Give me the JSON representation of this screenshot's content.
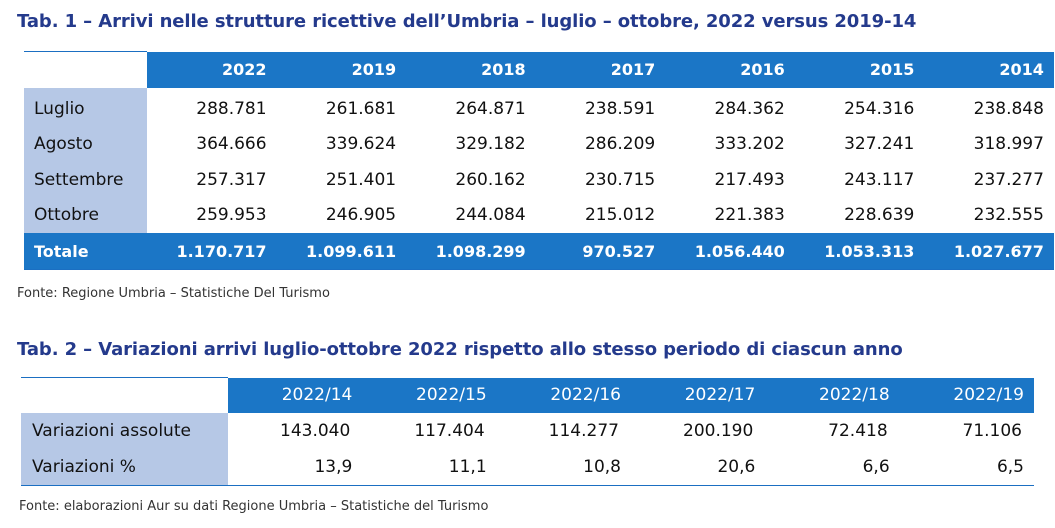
{
  "table1": {
    "title": "Tab. 1 – Arrivi nelle strutture ricettive dell’Umbria – luglio – ottobre, 2022 versus 2019-14",
    "columns": [
      "2022",
      "2019",
      "2018",
      "2017",
      "2016",
      "2015",
      "2014"
    ],
    "rows": [
      {
        "label": "Luglio",
        "values": [
          "288.781",
          "261.681",
          "264.871",
          "238.591",
          "284.362",
          "254.316",
          "238.848"
        ]
      },
      {
        "label": "Agosto",
        "values": [
          "364.666",
          "339.624",
          "329.182",
          "286.209",
          "333.202",
          "327.241",
          "318.997"
        ]
      },
      {
        "label": "Settembre",
        "values": [
          "257.317",
          "251.401",
          "260.162",
          "230.715",
          "217.493",
          "243.117",
          "237.277"
        ]
      },
      {
        "label": "Ottobre",
        "values": [
          "259.953",
          "246.905",
          "244.084",
          "215.012",
          "221.383",
          "228.639",
          "232.555"
        ]
      }
    ],
    "total": {
      "label": "Totale",
      "values": [
        "1.170.717",
        "1.099.611",
        "1.098.299",
        "970.527",
        "1.056.440",
        "1.053.313",
        "1.027.677"
      ]
    },
    "source": "Fonte: Regione Umbria – Statistiche Del Turismo"
  },
  "table2": {
    "title": "Tab. 2 – Variazioni arrivi luglio-ottobre 2022 rispetto allo stesso periodo di ciascun anno",
    "columns": [
      "2022/14",
      "2022/15",
      "2022/16",
      "2022/17",
      "2022/18",
      "2022/19"
    ],
    "rows": [
      {
        "label": "Variazioni assolute",
        "values": [
          "143.040",
          "117.404",
          "114.277",
          "200.190",
          "72.418",
          "71.106"
        ]
      },
      {
        "label": "Variazioni %",
        "values": [
          "13,9",
          "11,1",
          "10,8",
          "20,6",
          "6,6",
          "6,5"
        ]
      }
    ],
    "source": "Fonte: elaborazioni Aur su dati Regione Umbria – Statistiche del Turismo"
  },
  "colors": {
    "title": "#243a8c",
    "header_fill": "#1b76c6",
    "label_fill": "#b6c8e6"
  }
}
